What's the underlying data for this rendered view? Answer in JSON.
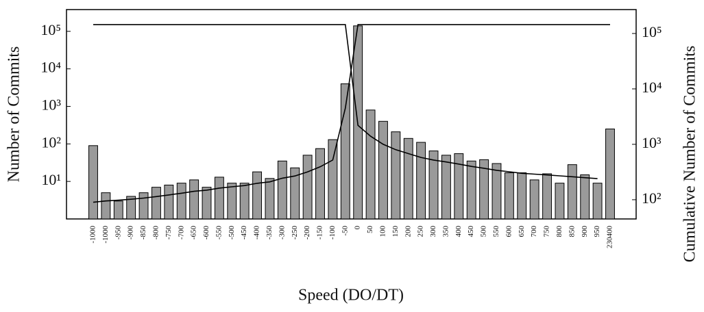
{
  "chart_data": {
    "type": "bar",
    "xlabel": "Speed (DO/DT)",
    "ylabel": "Number of Commits",
    "y2label": "Cumulative Number of Commits",
    "categories": [
      "-1000",
      "-1000",
      "-950",
      "-900",
      "-850",
      "-800",
      "-750",
      "-700",
      "-650",
      "-600",
      "-550",
      "-500",
      "-450",
      "-400",
      "-350",
      "-300",
      "-250",
      "-200",
      "-150",
      "-100",
      "-50",
      "0",
      "50",
      "100",
      "150",
      "200",
      "250",
      "300",
      "350",
      "400",
      "450",
      "500",
      "550",
      "600",
      "650",
      "700",
      "750",
      "800",
      "850",
      "900",
      "950",
      "230400"
    ],
    "ylog": true,
    "y2log": true,
    "ylim": [
      1,
      380000
    ],
    "yticks": [
      {
        "value": 10,
        "label": "10¹"
      },
      {
        "value": 100,
        "label": "10²"
      },
      {
        "value": 1000,
        "label": "10³"
      },
      {
        "value": 10000,
        "label": "10⁴"
      },
      {
        "value": 100000,
        "label": "10⁵"
      }
    ],
    "y2lim": [
      45,
      270000
    ],
    "y2ticks": [
      {
        "value": 100,
        "label": "10²"
      },
      {
        "value": 1000,
        "label": "10³"
      },
      {
        "value": 10000,
        "label": "10⁴"
      },
      {
        "value": 100000,
        "label": "10⁵"
      }
    ],
    "series": [
      {
        "type": "bar",
        "color": "#9a9a9a",
        "values": [
          90,
          5,
          3,
          4,
          5,
          7,
          8,
          9,
          11,
          7,
          13,
          9,
          9,
          18,
          12,
          35,
          23,
          50,
          75,
          130,
          4000,
          140000,
          800,
          400,
          210,
          140,
          110,
          65,
          50,
          55,
          35,
          38,
          30,
          17,
          17,
          11,
          16,
          9,
          28,
          15,
          9,
          250
        ]
      },
      {
        "type": "line",
        "axis": "y2",
        "color": "#000000",
        "values": [
          90,
          95,
          98,
          102,
          107,
          114,
          122,
          131,
          142,
          149,
          162,
          171,
          180,
          198,
          210,
          245,
          268,
          318,
          393,
          520,
          4500,
          145000,
          145000,
          145000,
          145000,
          145000,
          145000,
          145000,
          145000,
          145000,
          145000,
          145000,
          145000,
          145000,
          145000,
          145000,
          145000,
          145000,
          145000,
          145000,
          145000,
          145000
        ]
      },
      {
        "type": "line",
        "axis": "y2",
        "color": "#000000",
        "values": [
          145000,
          145000,
          145000,
          145000,
          145000,
          145000,
          145000,
          145000,
          145000,
          145000,
          145000,
          145000,
          145000,
          145000,
          145000,
          145000,
          145000,
          145000,
          145000,
          145000,
          145000,
          2200,
          1400,
          1000,
          800,
          680,
          580,
          520,
          480,
          440,
          400,
          370,
          340,
          320,
          300,
          290,
          280,
          270,
          260,
          250,
          240,
          null
        ]
      }
    ]
  }
}
